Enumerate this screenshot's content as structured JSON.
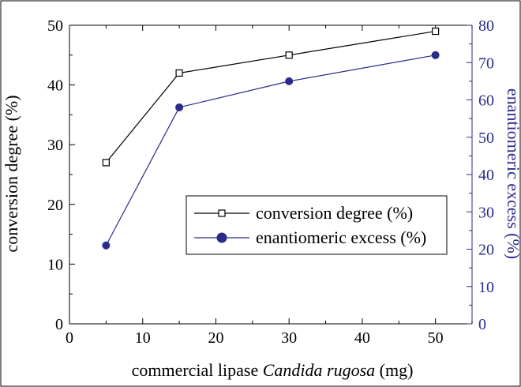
{
  "chart_data": {
    "type": "line",
    "x": [
      5,
      15,
      30,
      50
    ],
    "xlabel_parts": [
      {
        "text": "commercial lipase ",
        "italic": false
      },
      {
        "text": "Candida rugosa",
        "italic": true
      },
      {
        "text": " (mg)",
        "italic": false
      }
    ],
    "ylabel": "conversion degree (%)",
    "y2label": "enantiomeric excess (%)",
    "xlim": [
      0,
      55
    ],
    "ylim": [
      0,
      50
    ],
    "y2lim": [
      0,
      80
    ],
    "xticks": [
      "0",
      "10",
      "20",
      "30",
      "40",
      "50"
    ],
    "yticks": [
      "0",
      "10",
      "20",
      "30",
      "40",
      "50"
    ],
    "y2ticks": [
      "0",
      "10",
      "20",
      "30",
      "40",
      "50",
      "60",
      "70",
      "80"
    ],
    "series": [
      {
        "name": "conversion degree (%)",
        "axis": "left",
        "marker": "open-square",
        "color": "#000000",
        "values": [
          27,
          42,
          45,
          49
        ]
      },
      {
        "name": "enantiomeric excess (%)",
        "axis": "right",
        "marker": "filled-circle",
        "color": "#2b2b8c",
        "values": [
          21,
          58,
          65,
          72
        ]
      }
    ],
    "legend_position": "center-right",
    "grid": false
  }
}
